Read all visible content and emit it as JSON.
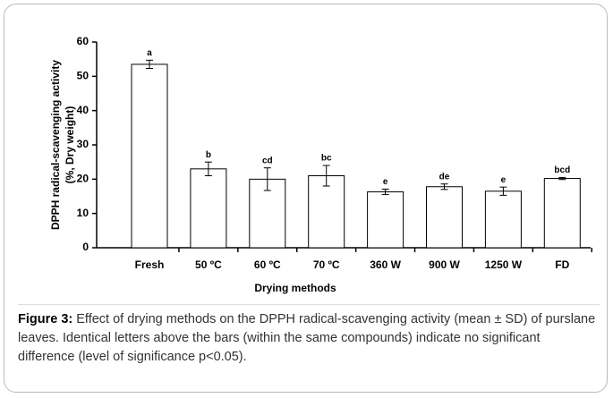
{
  "chart_data": {
    "type": "bar",
    "ylabel": [
      "DPPH radical-scavenging activity",
      "(%, Dry weight)"
    ],
    "xlabel": "Drying methods",
    "categories": [
      "Fresh",
      "50 ºC",
      "60 ºC",
      "70 ºC",
      "360 W",
      "900 W",
      "1250 W",
      "FD"
    ],
    "values": [
      53.5,
      23,
      20,
      21,
      16.3,
      17.8,
      16.5,
      20.2
    ],
    "errors": [
      1.2,
      2,
      3.3,
      3,
      0.8,
      0.8,
      1.2,
      0.3
    ],
    "letters": [
      "a",
      "b",
      "cd",
      "bc",
      "e",
      "de",
      "e",
      "bcd"
    ],
    "color": "#ffffff",
    "ylim": [
      0,
      60
    ],
    "yticks": [
      0,
      10,
      20,
      30,
      40,
      50,
      60
    ],
    "grid": false
  },
  "caption": {
    "label": "Figure 3:",
    "text": "Effect of drying methods on the DPPH radical-scavenging activity (mean ± SD) of purslane leaves. Identical letters above the bars (within the same compounds) indicate no significant difference (level of significance p<0.05)."
  }
}
